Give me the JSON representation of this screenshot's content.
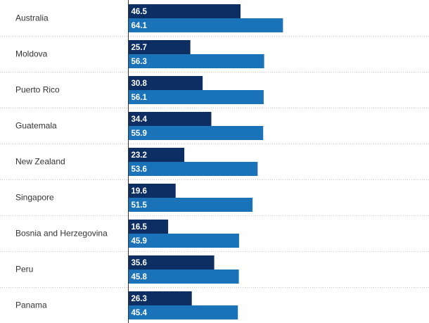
{
  "chart_data": {
    "type": "bar",
    "orientation": "horizontal",
    "categories": [
      "Australia",
      "Moldova",
      "Puerto Rico",
      "Guatemala",
      "New Zealand",
      "Singapore",
      "Bosnia and Herzegovina",
      "Peru",
      "Panama"
    ],
    "series": [
      {
        "values": [
          46.5,
          25.7,
          30.8,
          34.4,
          23.2,
          19.6,
          16.5,
          35.6,
          26.3
        ],
        "color": "#0d2e63"
      },
      {
        "values": [
          64.1,
          56.3,
          56.1,
          55.9,
          53.6,
          51.5,
          45.9,
          45.8,
          45.4
        ],
        "color": "#1a72b9"
      }
    ],
    "title": "",
    "xlabel": "",
    "ylabel": "",
    "xlim": [
      0,
      100
    ],
    "grid": "dotted row separators",
    "legend": "none"
  }
}
